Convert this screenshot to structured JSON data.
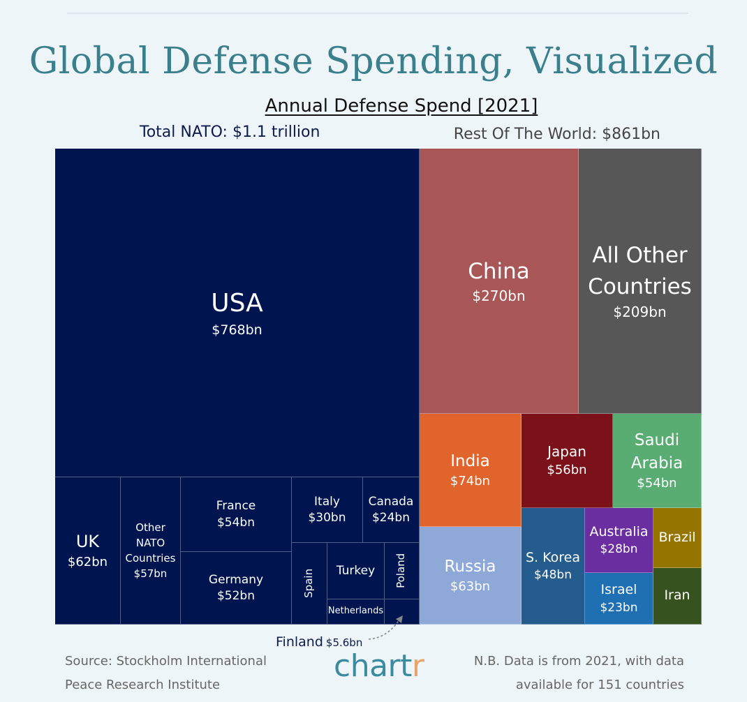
{
  "header": {
    "title": "Global Defense Spending, Visualized",
    "subtitle": "Annual Defense Spend [2021]",
    "nato_total": "Total NATO: $1.1 trillion",
    "rest_total": "Rest Of The World: $861bn"
  },
  "chart_data": {
    "type": "treemap",
    "title": "Global Defense Spending, Visualized",
    "subtitle": "Annual Defense Spend [2021]",
    "unit": "$bn",
    "groups": [
      {
        "name": "Total NATO: $1.1 trillion",
        "items": [
          {
            "name": "USA",
            "value": 768,
            "label": "$768bn",
            "color": "#001550"
          },
          {
            "name": "UK",
            "value": 62,
            "label": "$62bn",
            "color": "#001550"
          },
          {
            "name": "Other NATO Countries",
            "value": 57,
            "label": "$57bn",
            "color": "#001550"
          },
          {
            "name": "France",
            "value": 54,
            "label": "$54bn",
            "color": "#001550"
          },
          {
            "name": "Germany",
            "value": 52,
            "label": "$52bn",
            "color": "#001550"
          },
          {
            "name": "Italy",
            "value": 30,
            "label": "$30bn",
            "color": "#001550"
          },
          {
            "name": "Canada",
            "value": 24,
            "label": "$24bn",
            "color": "#001550"
          },
          {
            "name": "Spain",
            "color": "#001550"
          },
          {
            "name": "Turkey",
            "color": "#001550"
          },
          {
            "name": "Poland",
            "color": "#001550"
          },
          {
            "name": "Netherlands",
            "color": "#001550"
          },
          {
            "name": "Finland",
            "value": 5.6,
            "label": "$5.6bn",
            "color": "#001550"
          }
        ]
      },
      {
        "name": "Rest Of The World: $861bn",
        "items": [
          {
            "name": "China",
            "value": 270,
            "label": "$270bn",
            "color": "#a95656"
          },
          {
            "name": "All Other Countries",
            "value": 209,
            "label": "$209bn",
            "color": "#575757"
          },
          {
            "name": "India",
            "value": 74,
            "label": "$74bn",
            "color": "#e2642d"
          },
          {
            "name": "Russia",
            "value": 63,
            "label": "$63bn",
            "color": "#8ea8d8"
          },
          {
            "name": "Japan",
            "value": 56,
            "label": "$56bn",
            "color": "#7b1219"
          },
          {
            "name": "Saudi Arabia",
            "value": 54,
            "label": "$54bn",
            "color": "#5aad72"
          },
          {
            "name": "S. Korea",
            "value": 48,
            "label": "$48bn",
            "color": "#235c8d"
          },
          {
            "name": "Australia",
            "value": 28,
            "label": "$28bn",
            "color": "#6b2ea0"
          },
          {
            "name": "Israel",
            "value": 23,
            "label": "$23bn",
            "color": "#1f6fb3"
          },
          {
            "name": "Brazil",
            "color": "#957400"
          },
          {
            "name": "Iran",
            "color": "#36521f"
          }
        ]
      }
    ]
  },
  "finland_callout": {
    "name": "Finland",
    "value": "$5.6bn"
  },
  "footer": {
    "source_line1": "Source: Stockholm International",
    "source_line2": "Peace Research Institute",
    "logo_main": "chart",
    "logo_accent": "r",
    "note_line1": "N.B. Data is from 2021, with data",
    "note_line2": "available for 151 countries"
  }
}
